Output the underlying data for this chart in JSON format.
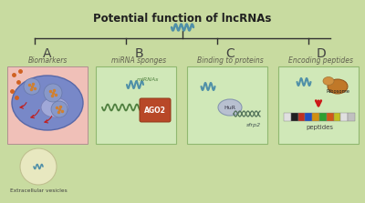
{
  "title": "Potential function of lncRNAs",
  "bg_color": "#c8dba0",
  "outer_border_color": "#a8c080",
  "section_labels": [
    "A",
    "B",
    "C",
    "D"
  ],
  "section_subtitles": [
    "Biomarkers",
    "miRNA sponges",
    "Binding to proteins",
    "Encoding peptides"
  ],
  "panel_a_bg": "#f0c0b8",
  "panel_bcd_bg": "#d0e8b8",
  "panel_bcd_border": "#90b870",
  "wave_color": "#5090a8",
  "line_color": "#303030",
  "text_color_title": "#202020",
  "arrow_color": "#cc1818",
  "ago2_color": "#b84828",
  "ribosome_color": "#c07828",
  "ev_bg": "#e8e8c0",
  "cell_color": "#8090c8",
  "nucleus_color": "#6878b8",
  "pep_colors": [
    "#e0e0e0",
    "#202020",
    "#c03020",
    "#2050c0",
    "#d09010",
    "#30a030",
    "#d05818",
    "#c0c020",
    "#e0e0e0",
    "#c0c0c0"
  ]
}
